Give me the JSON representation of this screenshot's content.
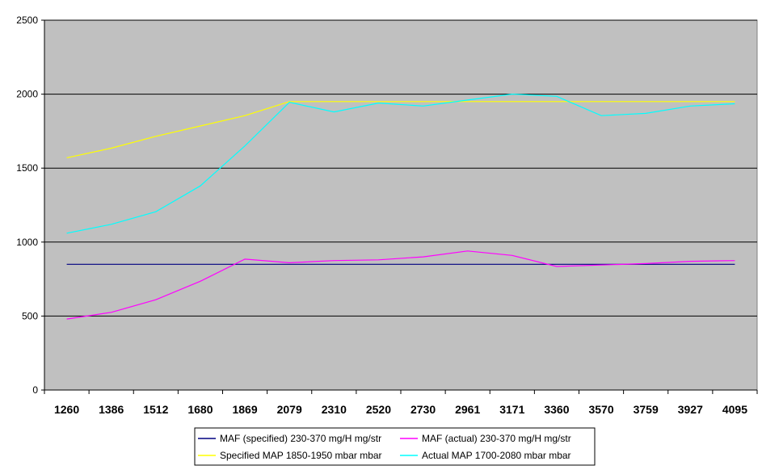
{
  "chart_data": {
    "type": "line",
    "title": "",
    "xlabel": "",
    "ylabel": "",
    "ylim": [
      0,
      2500
    ],
    "yticks": [
      0,
      500,
      1000,
      1500,
      2000,
      2500
    ],
    "grid": "horizontal",
    "background_color": "#c0c0c0",
    "legend_position": "bottom",
    "categories": [
      "1260",
      "1386",
      "1512",
      "1680",
      "1869",
      "2079",
      "2310",
      "2520",
      "2730",
      "2961",
      "3171",
      "3360",
      "3570",
      "3759",
      "3927",
      "4095"
    ],
    "series": [
      {
        "name": "MAF (specified) 230-370 mg/H  mg/str",
        "color": "#000080",
        "values": [
          850,
          850,
          850,
          850,
          850,
          850,
          850,
          850,
          850,
          850,
          850,
          850,
          850,
          850,
          850,
          850
        ]
      },
      {
        "name": "MAF (actual) 230-370 mg/H  mg/str",
        "color": "#ff00ff",
        "values": [
          480,
          525,
          610,
          735,
          885,
          860,
          875,
          880,
          900,
          940,
          910,
          835,
          845,
          855,
          870,
          875
        ]
      },
      {
        "name": "Specified MAP 1850-1950 mbar  mbar",
        "color": "#ffff00",
        "values": [
          1570,
          1635,
          1715,
          1785,
          1855,
          1950,
          1950,
          1950,
          1950,
          1950,
          1950,
          1950,
          1950,
          1950,
          1950,
          1950
        ]
      },
      {
        "name": "Actual MAP 1700-2080 mbar  mbar",
        "color": "#00ffff",
        "values": [
          1060,
          1120,
          1205,
          1380,
          1650,
          1945,
          1880,
          1940,
          1920,
          1960,
          2000,
          1985,
          1855,
          1870,
          1920,
          1935
        ]
      }
    ]
  }
}
